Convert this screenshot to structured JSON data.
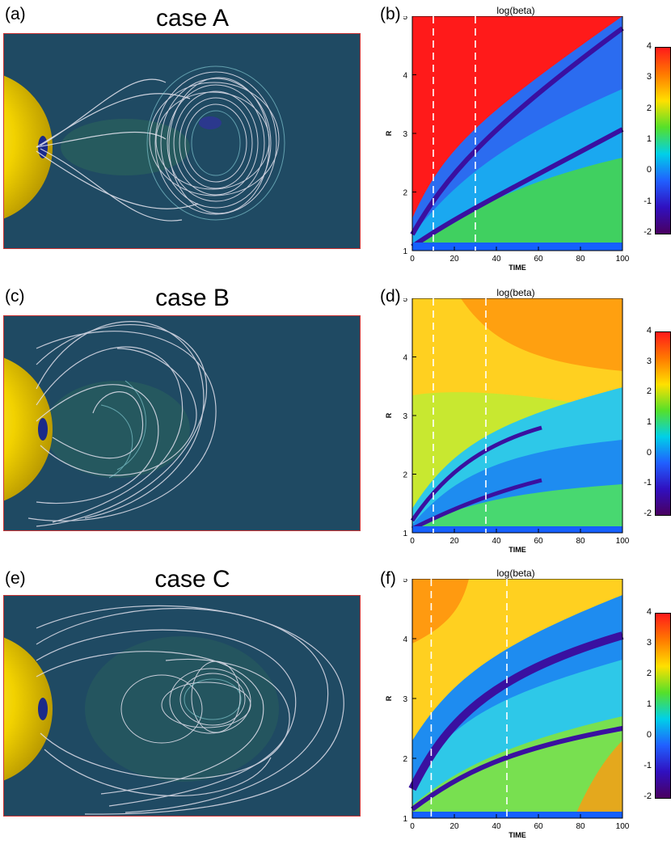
{
  "panels": [
    {
      "label": "(a)",
      "case_title": "case A"
    },
    {
      "label": "(b)",
      "plot_title": "log(beta)"
    },
    {
      "label": "(c)",
      "case_title": "case B"
    },
    {
      "label": "(d)",
      "plot_title": "log(beta)"
    },
    {
      "label": "(e)",
      "case_title": "case C"
    },
    {
      "label": "(f)",
      "plot_title": "log(beta)"
    }
  ],
  "chart_data": [
    {
      "type": "heatmap",
      "title": "log(beta)",
      "xlabel": "TIME",
      "ylabel": "R",
      "xlim": [
        0,
        100
      ],
      "ylim": [
        1,
        5
      ],
      "x_ticks": [
        "0",
        "20",
        "40",
        "60",
        "80",
        "100"
      ],
      "y_ticks": [
        "1",
        "2",
        "3",
        "4",
        "5"
      ],
      "dashed_time_markers": [
        10,
        30
      ],
      "colorbar": {
        "range": [
          -2,
          4
        ],
        "ticks": [
          "4",
          "3",
          "2",
          "1",
          "0",
          "-1",
          "-2"
        ]
      }
    },
    {
      "type": "heatmap",
      "title": "log(beta)",
      "xlabel": "TIME",
      "ylabel": "R",
      "xlim": [
        0,
        100
      ],
      "ylim": [
        1,
        5
      ],
      "x_ticks": [
        "0",
        "20",
        "40",
        "60",
        "80",
        "100"
      ],
      "y_ticks": [
        "1",
        "2",
        "3",
        "4",
        "5"
      ],
      "dashed_time_markers": [
        10,
        35
      ],
      "colorbar": {
        "range": [
          -2,
          4
        ],
        "ticks": [
          "4",
          "3",
          "2",
          "1",
          "0",
          "-1",
          "-2"
        ]
      }
    },
    {
      "type": "heatmap",
      "title": "log(beta)",
      "xlabel": "TIME",
      "ylabel": "R",
      "xlim": [
        0,
        100
      ],
      "ylim": [
        1,
        5
      ],
      "x_ticks": [
        "0",
        "20",
        "40",
        "60",
        "80",
        "100"
      ],
      "y_ticks": [
        "1",
        "2",
        "3",
        "4",
        "5"
      ],
      "dashed_time_markers": [
        9,
        45
      ],
      "colorbar": {
        "range": [
          -2,
          4
        ],
        "ticks": [
          "4",
          "3",
          "2",
          "1",
          "0",
          "-1",
          "-2"
        ]
      }
    }
  ]
}
